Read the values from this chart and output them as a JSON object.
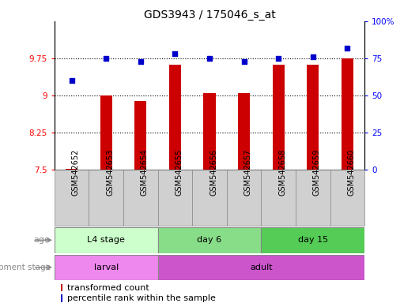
{
  "title": "GDS3943 / 175046_s_at",
  "samples": [
    "GSM542652",
    "GSM542653",
    "GSM542654",
    "GSM542655",
    "GSM542656",
    "GSM542657",
    "GSM542658",
    "GSM542659",
    "GSM542660"
  ],
  "transformed_count": [
    7.52,
    9.0,
    8.88,
    9.62,
    9.05,
    9.05,
    9.62,
    9.62,
    9.75
  ],
  "percentile_rank": [
    60,
    75,
    73,
    78,
    75,
    73,
    75,
    76,
    82
  ],
  "ylim_left": [
    7.5,
    10.5
  ],
  "ylim_right": [
    0,
    100
  ],
  "yticks_left": [
    7.5,
    8.25,
    9.0,
    9.75
  ],
  "yticks_right": [
    0,
    25,
    50,
    75,
    100
  ],
  "ytick_labels_left": [
    "7.5",
    "8.25",
    "9",
    "9.75"
  ],
  "ytick_labels_right": [
    "0",
    "25",
    "50",
    "75",
    "100%"
  ],
  "hlines": [
    8.25,
    9.0,
    9.75
  ],
  "bar_color": "#cc0000",
  "dot_color": "#0000cc",
  "bar_width": 0.35,
  "age_groups": [
    {
      "label": "L4 stage",
      "start": 0,
      "end": 3,
      "color": "#ccffcc"
    },
    {
      "label": "day 6",
      "start": 3,
      "end": 6,
      "color": "#88dd88"
    },
    {
      "label": "day 15",
      "start": 6,
      "end": 9,
      "color": "#55cc55"
    }
  ],
  "dev_groups": [
    {
      "label": "larval",
      "start": 0,
      "end": 3,
      "color": "#ee88ee"
    },
    {
      "label": "adult",
      "start": 3,
      "end": 9,
      "color": "#cc55cc"
    }
  ],
  "legend_bar_color": "#cc0000",
  "legend_dot_color": "#0000cc",
  "legend_bar_label": "transformed count",
  "legend_dot_label": "percentile rank within the sample",
  "grid_color": "black",
  "cell_color": "#d0d0d0",
  "cell_edge_color": "#888888"
}
